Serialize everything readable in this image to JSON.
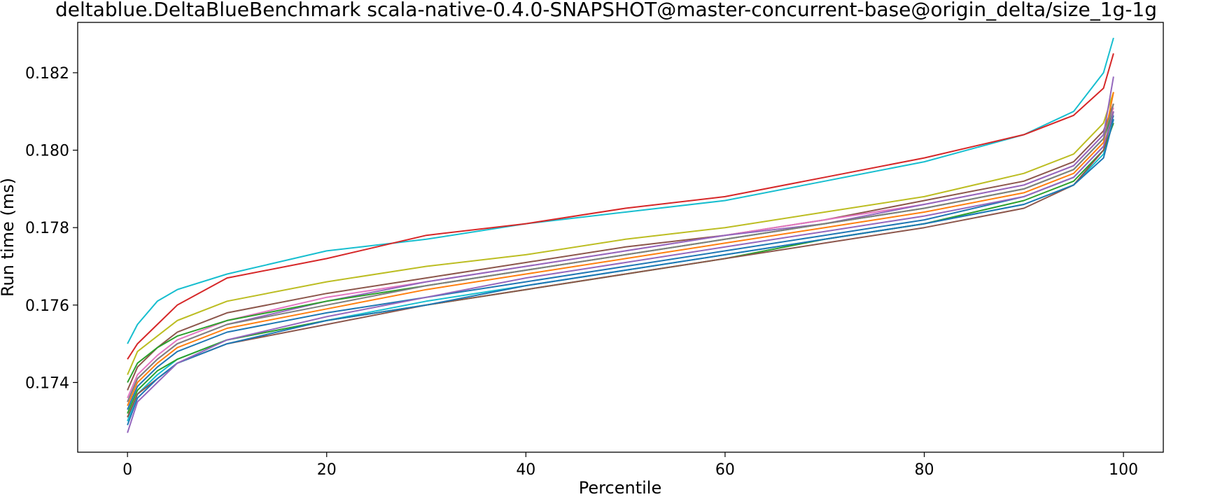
{
  "chart_data": {
    "type": "line",
    "title": "deltablue.DeltaBlueBenchmark scala-native-0.4.0-SNAPSHOT@master-concurrent-base@origin_delta/size_1g-1g",
    "xlabel": "Percentile",
    "ylabel": "Run time (ms)",
    "xlim": [
      -5,
      104
    ],
    "ylim": [
      0.1722,
      0.1833
    ],
    "x_ticks": [
      0,
      20,
      40,
      60,
      80,
      100
    ],
    "y_ticks": [
      0.174,
      0.176,
      0.178,
      0.18,
      0.182
    ],
    "x_tick_labels": [
      "0",
      "20",
      "40",
      "60",
      "80",
      "100"
    ],
    "y_tick_labels": [
      "0.174",
      "0.176",
      "0.178",
      "0.180",
      "0.182"
    ],
    "grid": false,
    "legend": "none",
    "x": [
      0,
      1,
      3,
      5,
      10,
      20,
      30,
      40,
      50,
      60,
      70,
      80,
      90,
      95,
      98,
      99
    ],
    "series": [
      {
        "color": "#17becf",
        "values": [
          0.175,
          0.1755,
          0.1761,
          0.1764,
          0.1768,
          0.1774,
          0.1777,
          0.1781,
          0.1784,
          0.1787,
          0.1792,
          0.1797,
          0.1804,
          0.181,
          0.182,
          0.1829
        ]
      },
      {
        "color": "#d62728",
        "values": [
          0.1746,
          0.175,
          0.1755,
          0.176,
          0.1767,
          0.1772,
          0.1778,
          0.1781,
          0.1785,
          0.1788,
          0.1793,
          0.1798,
          0.1804,
          0.1809,
          0.1816,
          0.1825
        ]
      },
      {
        "color": "#bcbd22",
        "values": [
          0.1742,
          0.1748,
          0.1752,
          0.1756,
          0.1761,
          0.1766,
          0.177,
          0.1773,
          0.1777,
          0.178,
          0.1784,
          0.1788,
          0.1794,
          0.1799,
          0.1807,
          0.1815
        ]
      },
      {
        "color": "#8c564b",
        "values": [
          0.1738,
          0.1744,
          0.1749,
          0.1753,
          0.1758,
          0.1763,
          0.1767,
          0.1771,
          0.1775,
          0.1778,
          0.1782,
          0.1787,
          0.1792,
          0.1797,
          0.1805,
          0.1812
        ]
      },
      {
        "color": "#e377c2",
        "values": [
          0.1736,
          0.1742,
          0.1747,
          0.1751,
          0.1756,
          0.1762,
          0.1766,
          0.177,
          0.1774,
          0.1778,
          0.1782,
          0.1786,
          0.1791,
          0.1796,
          0.1804,
          0.1811
        ]
      },
      {
        "color": "#9467bd",
        "values": [
          0.1735,
          0.1741,
          0.1746,
          0.175,
          0.1755,
          0.1761,
          0.1766,
          0.177,
          0.1774,
          0.1778,
          0.1781,
          0.1786,
          0.1791,
          0.1796,
          0.1804,
          0.1819
        ]
      },
      {
        "color": "#2ca02c",
        "values": [
          0.174,
          0.1745,
          0.1749,
          0.1752,
          0.1756,
          0.1761,
          0.1765,
          0.1769,
          0.1773,
          0.1777,
          0.1781,
          0.1785,
          0.179,
          0.1795,
          0.1803,
          0.181
        ]
      },
      {
        "color": "#ff7f0e",
        "values": [
          0.1734,
          0.174,
          0.1745,
          0.1749,
          0.1754,
          0.1759,
          0.1764,
          0.1768,
          0.1772,
          0.1776,
          0.178,
          0.1784,
          0.1789,
          0.1794,
          0.1802,
          0.1815
        ]
      },
      {
        "color": "#7f7f7f",
        "values": [
          0.1735,
          0.1741,
          0.1746,
          0.175,
          0.1755,
          0.176,
          0.1765,
          0.1769,
          0.1773,
          0.1777,
          0.1781,
          0.1785,
          0.179,
          0.1795,
          0.1803,
          0.1812
        ]
      },
      {
        "color": "#1f77b4",
        "values": [
          0.1733,
          0.1739,
          0.1744,
          0.1748,
          0.1753,
          0.1758,
          0.1762,
          0.1766,
          0.177,
          0.1774,
          0.1778,
          0.1782,
          0.1788,
          0.1793,
          0.1801,
          0.1809
        ]
      },
      {
        "color": "#17becf",
        "values": [
          0.173,
          0.1737,
          0.1742,
          0.1746,
          0.1751,
          0.1756,
          0.1761,
          0.1765,
          0.1769,
          0.1773,
          0.1777,
          0.1781,
          0.1786,
          0.1791,
          0.1799,
          0.1808
        ]
      },
      {
        "color": "#2ca02c",
        "values": [
          0.1732,
          0.1738,
          0.1743,
          0.1746,
          0.1751,
          0.1756,
          0.176,
          0.1764,
          0.1768,
          0.1772,
          0.1777,
          0.1781,
          0.1787,
          0.1792,
          0.18,
          0.1807
        ]
      },
      {
        "color": "#8c564b",
        "values": [
          0.1731,
          0.1737,
          0.1741,
          0.1745,
          0.175,
          0.1755,
          0.176,
          0.1764,
          0.1768,
          0.1772,
          0.1776,
          0.178,
          0.1785,
          0.1791,
          0.18,
          0.181
        ]
      },
      {
        "color": "#1f77b4",
        "values": [
          0.1729,
          0.1736,
          0.1741,
          0.1745,
          0.175,
          0.1756,
          0.176,
          0.1765,
          0.1769,
          0.1773,
          0.1777,
          0.1781,
          0.1786,
          0.1791,
          0.1798,
          0.1808
        ]
      },
      {
        "color": "#9467bd",
        "values": [
          0.1727,
          0.1735,
          0.174,
          0.1745,
          0.1751,
          0.1757,
          0.1762,
          0.1767,
          0.1771,
          0.1775,
          0.1779,
          0.1783,
          0.1788,
          0.1793,
          0.1801,
          0.181
        ]
      }
    ]
  }
}
